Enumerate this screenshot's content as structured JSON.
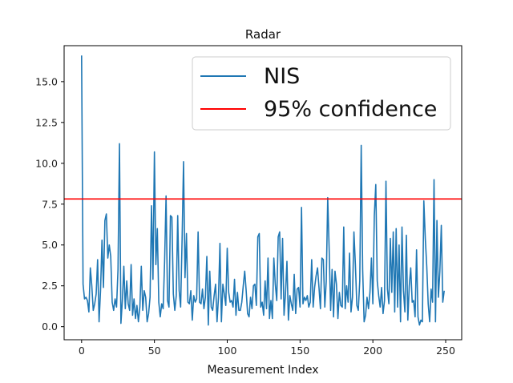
{
  "chart_data": {
    "type": "line",
    "title": "Radar",
    "xlabel": "Measurement Index",
    "ylabel": "",
    "xlim": [
      -12,
      261
    ],
    "ylim": [
      -0.8,
      17.2
    ],
    "xticks": [
      0,
      50,
      100,
      150,
      200,
      250
    ],
    "xtick_labels": [
      "0",
      "50",
      "100",
      "150",
      "200",
      "250"
    ],
    "yticks": [
      0.0,
      2.5,
      5.0,
      7.5,
      10.0,
      12.5,
      15.0
    ],
    "ytick_labels": [
      "0.0",
      "2.5",
      "5.0",
      "7.5",
      "10.0",
      "12.5",
      "15.0"
    ],
    "grid": false,
    "legend_position": "upper-right",
    "series": [
      {
        "name": "NIS",
        "color": "#1f77b4",
        "kind": "line",
        "values": [
          16.6,
          2.6,
          1.7,
          1.8,
          1.6,
          0.9,
          3.6,
          2.5,
          1.0,
          1.4,
          2.0,
          4.1,
          0.3,
          2.2,
          5.3,
          2.4,
          6.5,
          6.9,
          4.2,
          5.0,
          4.3,
          1.5,
          1.0,
          1.7,
          1.2,
          3.5,
          11.2,
          0.2,
          1.6,
          3.7,
          1.1,
          2.8,
          1.4,
          1.0,
          3.8,
          0.7,
          1.7,
          0.5,
          1.3,
          0.3,
          1.2,
          3.7,
          1.0,
          2.2,
          1.8,
          0.3,
          0.8,
          1.8,
          7.4,
          2.9,
          10.7,
          3.8,
          6.0,
          1.5,
          0.6,
          1.4,
          1.1,
          4.0,
          8.0,
          1.6,
          1.2,
          6.8,
          6.7,
          2.0,
          1.0,
          1.9,
          6.8,
          2.2,
          1.2,
          5.3,
          10.1,
          3.0,
          5.7,
          1.5,
          1.4,
          2.2,
          0.4,
          1.9,
          1.5,
          1.7,
          5.8,
          1.5,
          1.4,
          2.3,
          1.1,
          1.8,
          4.3,
          0.1,
          3.4,
          1.2,
          1.0,
          1.9,
          2.6,
          0.3,
          1.8,
          5.1,
          0.3,
          2.6,
          2.0,
          1.3,
          4.8,
          2.1,
          1.5,
          1.6,
          1.2,
          2.9,
          0.7,
          2.1,
          1.0,
          1.0,
          1.5,
          2.5,
          3.4,
          2.2,
          0.8,
          0.6,
          1.8,
          1.1,
          2.5,
          2.6,
          1.3,
          5.5,
          5.7,
          1.2,
          1.5,
          0.7,
          2.8,
          1.1,
          4.2,
          0.5,
          1.6,
          0.5,
          4.2,
          2.6,
          1.6,
          5.5,
          5.8,
          1.7,
          5.4,
          0.7,
          2.0,
          4.0,
          0.4,
          1.9,
          1.4,
          1.0,
          3.2,
          0.8,
          2.3,
          2.4,
          1.2,
          7.3,
          1.4,
          1.8,
          1.6,
          1.9,
          1.2,
          1.5,
          4.1,
          1.2,
          2.4,
          3.1,
          3.6,
          2.4,
          1.1,
          4.2,
          4.1,
          1.2,
          2.8,
          7.9,
          4.7,
          1.0,
          3.5,
          0.6,
          3.4,
          2.6,
          0.5,
          2.1,
          1.3,
          1.2,
          6.1,
          1.1,
          2.5,
          1.5,
          4.5,
          0.9,
          1.8,
          5.8,
          3.8,
          1.3,
          1.0,
          2.8,
          11.1,
          3.5,
          0.3,
          0.7,
          1.8,
          1.1,
          2.1,
          4.2,
          1.4,
          6.8,
          8.7,
          2.8,
          1.9,
          1.2,
          2.4,
          0.8,
          1.6,
          8.9,
          2.3,
          1.4,
          5.4,
          2.1,
          5.8,
          0.9,
          6.0,
          1.2,
          5.0,
          0.3,
          6.1,
          2.2,
          0.9,
          5.6,
          0.4,
          2.5,
          3.6,
          1.5,
          1.6,
          0.6,
          4.7,
          0.6,
          0.1,
          0.4,
          0.3,
          7.7,
          5.4,
          3.7,
          1.4,
          0.3,
          2.3,
          1.5,
          9.0,
          0.3,
          6.5,
          1.8,
          3.4,
          6.2,
          1.5,
          2.2
        ]
      },
      {
        "name": "95% confidence",
        "color": "#ff0000",
        "kind": "hline",
        "y": 7.815
      }
    ]
  }
}
